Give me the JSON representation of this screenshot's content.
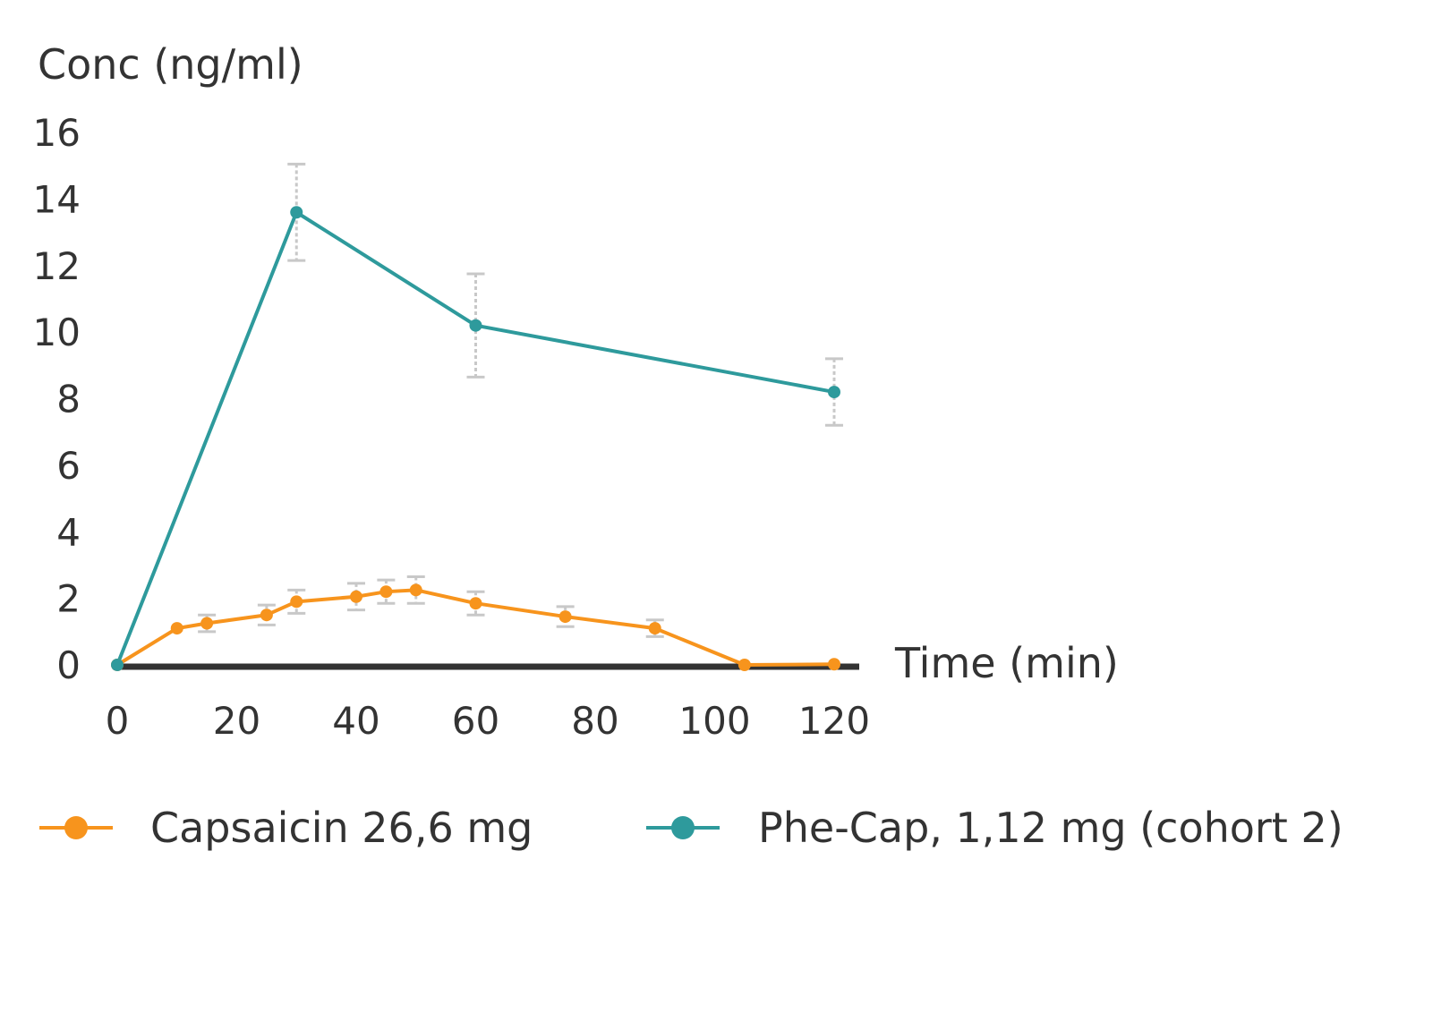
{
  "chart_data": {
    "type": "line",
    "ylabel": "Conc (ng/ml)",
    "xlabel": "Time (min)",
    "xlim": [
      0,
      120
    ],
    "ylim": [
      0,
      16
    ],
    "xticks": [
      "0",
      "20",
      "40",
      "60",
      "80",
      "100",
      "120"
    ],
    "yticks": [
      "0",
      "2",
      "4",
      "6",
      "8",
      "10",
      "12",
      "14",
      "16"
    ],
    "grid": false,
    "legend_position": "bottom",
    "series": [
      {
        "name": "Capsaicin 26,6 mg",
        "color": "#f7941d",
        "x": [
          0,
          10,
          15,
          25,
          30,
          40,
          45,
          50,
          60,
          75,
          90,
          105,
          120
        ],
        "y": [
          0,
          1.1,
          1.25,
          1.5,
          1.9,
          2.05,
          2.2,
          2.25,
          1.85,
          1.45,
          1.1,
          0,
          0.02
        ],
        "error": [
          0,
          0,
          0.25,
          0.3,
          0.35,
          0.4,
          0.35,
          0.4,
          0.35,
          0.3,
          0.25,
          0,
          0
        ]
      },
      {
        "name": "Phe-Cap, 1,12 mg (cohort 2)",
        "color": "#2e9a9c",
        "x": [
          0,
          30,
          60,
          120
        ],
        "y": [
          0,
          13.6,
          10.2,
          8.2
        ],
        "error": [
          0,
          1.45,
          1.55,
          1.0
        ]
      }
    ]
  }
}
